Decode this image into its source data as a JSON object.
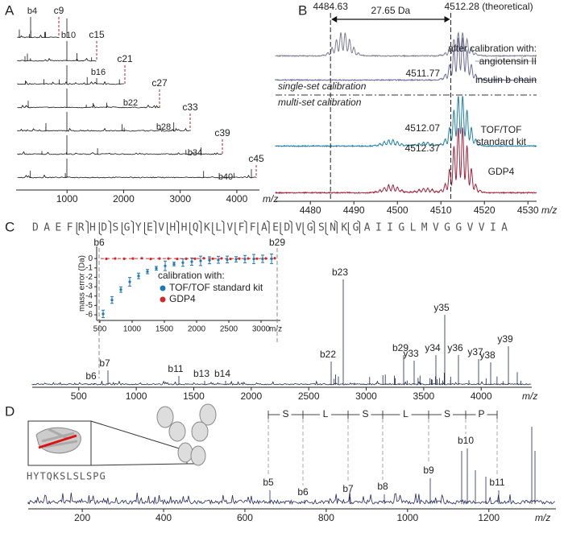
{
  "panel_a": {
    "label": "A",
    "xlim": [
      100,
      4400
    ],
    "xticks": [
      1000,
      2000,
      3000,
      4000
    ],
    "x_unit": "m/z",
    "color": "#111111",
    "ion_color": "#b22234",
    "b_ions": [
      "b4",
      "b10",
      "b16",
      "b22",
      "b28",
      "b34",
      "b40"
    ],
    "c_ions": [
      "c9",
      "c15",
      "c21",
      "c27",
      "c33",
      "c39",
      "c45"
    ]
  },
  "panel_b": {
    "label": "B",
    "xlim": [
      4472,
      4532
    ],
    "xticks": [
      4480,
      4490,
      4500,
      4510,
      4520,
      4530
    ],
    "x_unit": "m/z",
    "left_peak": 4484.63,
    "theoretical_peak": {
      "value": 4512.28,
      "label": "4512.28 (theoretical)"
    },
    "delta": "27.65 Da",
    "header": "after calibration with:",
    "single_set": "single-set calibration",
    "multi_set": "multi-set calibration",
    "traces": [
      {
        "name_lines": [
          "angiotensin II"
        ],
        "color": "#7d7d90"
      },
      {
        "name_lines": [
          "insulin b chain"
        ],
        "peak": 4511.77,
        "color": "#6d6d9e"
      },
      {
        "name_lines": [
          "TOF/TOF",
          "standard kit"
        ],
        "peak": 4512.07,
        "color": "#1f7fa6"
      },
      {
        "name_lines": [
          "GDP4"
        ],
        "peak": 4512.37,
        "color": "#a3223c"
      }
    ]
  },
  "panel_c": {
    "label": "C",
    "sequence": "DAEFRHDSGYEVHHQKLVFFAEDVGSNKGAIIGLMVGGVVIA",
    "xlim": [
      95,
      4440
    ],
    "xticks": [
      500,
      1000,
      1500,
      2000,
      2500,
      3000,
      3500,
      4000
    ],
    "x_unit": "m/z",
    "color": "#1c2650",
    "ions": [
      "b6",
      "b7",
      "b11",
      "b13",
      "b14",
      "b22",
      "b23",
      "b29",
      "y33",
      "y34",
      "y35",
      "y36",
      "y37",
      "y38",
      "y39"
    ],
    "inset": {
      "ylabel": "mass error (Da)",
      "xlim": [
        450,
        3300
      ],
      "ylim": [
        -6.6,
        1.3
      ],
      "xticks": [
        500,
        1000,
        1500,
        2000,
        2500,
        3000
      ],
      "yticks": [
        0,
        -1,
        -2,
        -3,
        -4,
        -5,
        -6
      ],
      "x_unit": "m/z",
      "start": "b6",
      "end": "b29",
      "legend_title": "calibration with:",
      "series": [
        {
          "name": "TOF/TOF standard kit",
          "color": "#1f77b4"
        },
        {
          "name": "GDP4",
          "color": "#d62728"
        }
      ]
    }
  },
  "panel_d": {
    "label": "D",
    "sequence": "HYTQKSLSLSPG",
    "residues": [
      "S",
      "L",
      "S",
      "L",
      "S",
      "P"
    ],
    "ions": [
      "b5",
      "b6",
      "b7",
      "b8",
      "b9",
      "b10",
      "b11"
    ],
    "xlim": [
      67,
      1365
    ],
    "xticks": [
      200,
      400,
      600,
      800,
      1000,
      1200
    ],
    "x_unit": "m/z",
    "color": "#26285e",
    "ion_color": "#b22234"
  }
}
